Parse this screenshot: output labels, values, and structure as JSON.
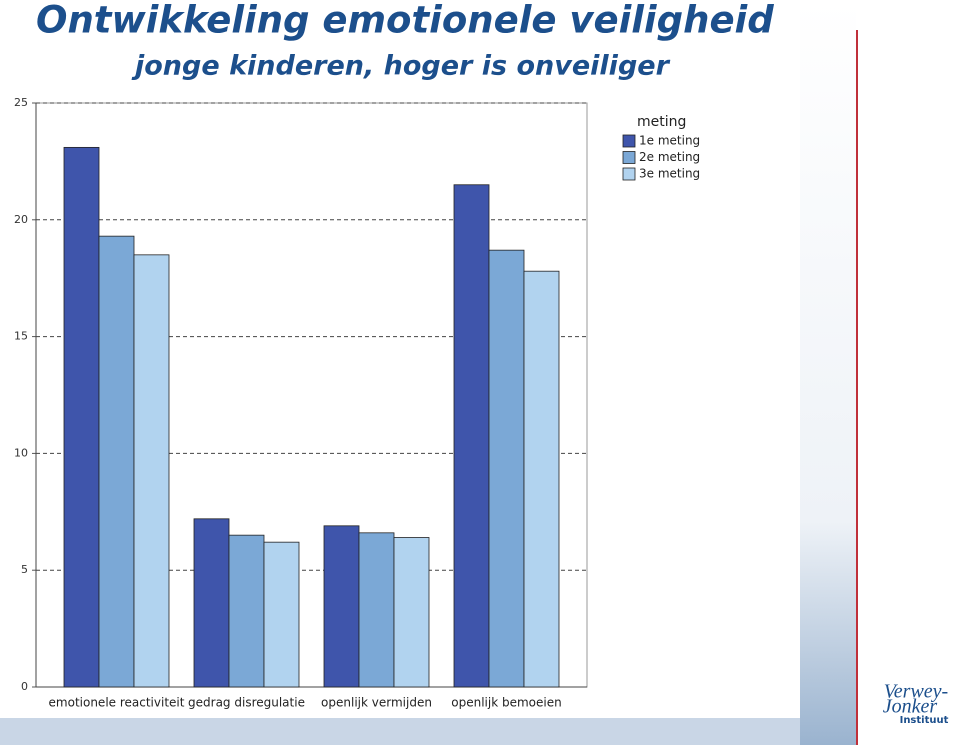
{
  "chart_data": {
    "type": "bar",
    "title": "Ontwikkeling emotionele veiligheid",
    "subtitle": "jonge kinderen, hoger is onveiliger",
    "categories": [
      "emotionele reactiviteit",
      "gedrag disregulatie",
      "openlijk vermijden",
      "openlijk bemoeien"
    ],
    "series": [
      {
        "name": "1e meting",
        "color": "#3f55ab",
        "values": [
          23.1,
          7.2,
          6.9,
          21.5
        ]
      },
      {
        "name": "2e meting",
        "color": "#7ba8d6",
        "values": [
          19.3,
          6.5,
          6.6,
          18.7
        ]
      },
      {
        "name": "3e meting",
        "color": "#b1d3ef",
        "values": [
          18.5,
          6.2,
          6.4,
          17.8
        ]
      }
    ],
    "legend_title": "meting",
    "legend": "right",
    "ylim": [
      0,
      25
    ],
    "yticks": [
      0,
      5,
      10,
      15,
      20,
      25
    ],
    "grid": true
  },
  "logo": {
    "line1": "Verwey-",
    "line2": "Jonker",
    "line3": "Instituut"
  }
}
